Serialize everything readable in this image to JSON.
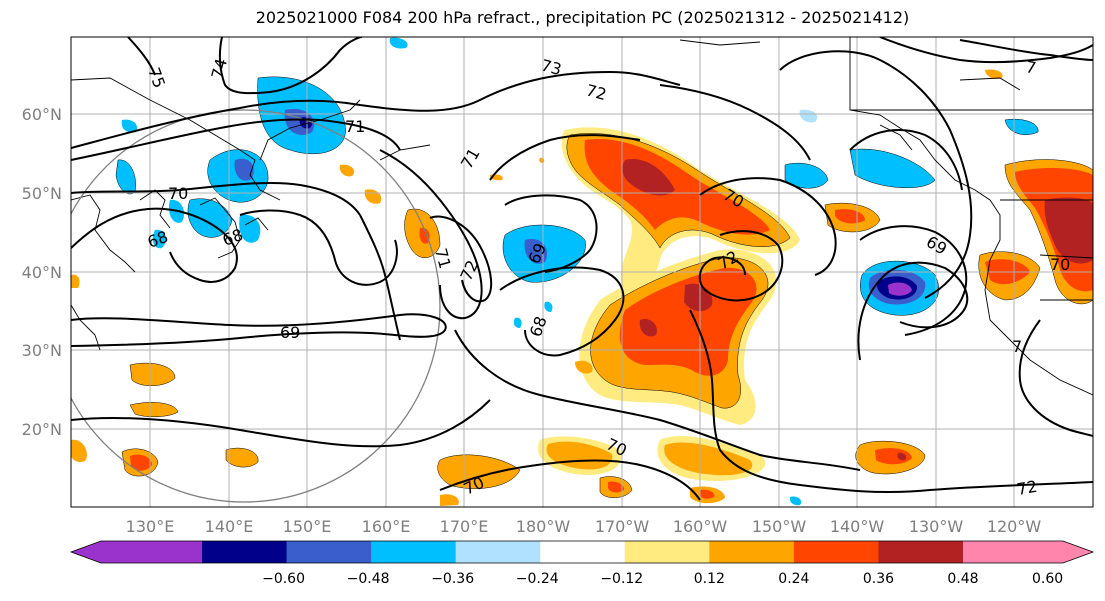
{
  "title": "2025021000 F084 200 hPa refract., precipitation PC (2025021312 - 2025021412)",
  "latitude_labels": [
    "60°N",
    "50°N",
    "40°N",
    "30°N",
    "20°N"
  ],
  "longitude_labels": [
    "130°E",
    "140°E",
    "150°E",
    "160°E",
    "170°E",
    "180°W",
    "170°W",
    "160°W",
    "150°W",
    "140°W",
    "130°W",
    "120°W"
  ],
  "contour_labels": [
    "75",
    "74",
    "73",
    "72",
    "71",
    "70",
    "70",
    "69",
    "68",
    "68",
    "71",
    "72",
    "69",
    "68",
    "70",
    "72",
    "69",
    "70",
    "70",
    "72",
    "71",
    "7",
    "7"
  ],
  "colorbar": {
    "ticks": [
      "−0.60",
      "−0.48",
      "−0.36",
      "−0.24",
      "−0.12",
      "0.12",
      "0.24",
      "0.36",
      "0.48",
      "0.60"
    ],
    "colors": [
      "#9933cc",
      "#00008b",
      "#3a5fcd",
      "#00bfff",
      "#b0e2ff",
      "#ffffff",
      "#ffeb80",
      "#ffa500",
      "#ff4500",
      "#b22222",
      "#ff85ad"
    ]
  },
  "colors": {
    "contour": "#000000",
    "coast": "#000000",
    "grid": "#b0b0b0",
    "circle": "#808080",
    "axis_label": "#7f7f7f"
  }
}
